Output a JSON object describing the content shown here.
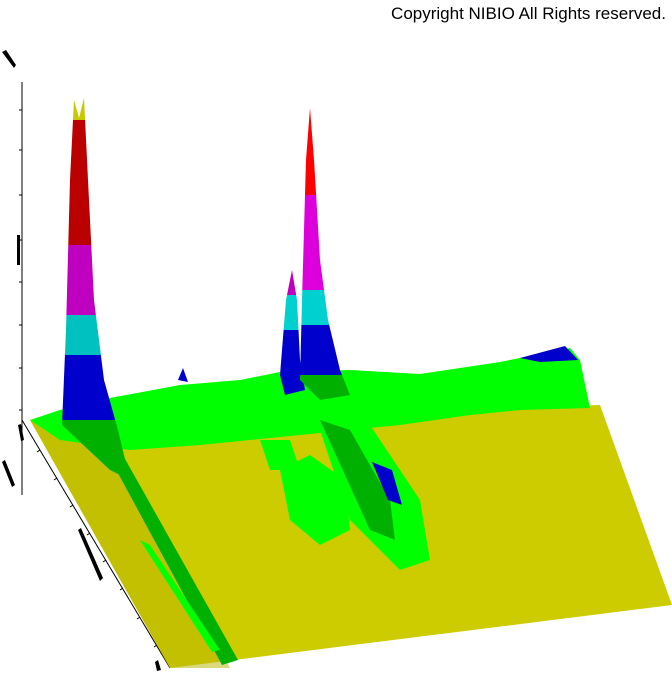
{
  "copyright": "Copyright NIBIO All Rights reserved.",
  "chart_data": {
    "type": "surface",
    "title": "",
    "xlabel": "",
    "ylabel": "",
    "zlabel": "",
    "grid": false,
    "colormap": [
      "#c8c800",
      "#00ff00",
      "#00b000",
      "#0000cc",
      "#00c8c8",
      "#cc00cc",
      "#bb0000",
      "#ff0000"
    ]
  }
}
